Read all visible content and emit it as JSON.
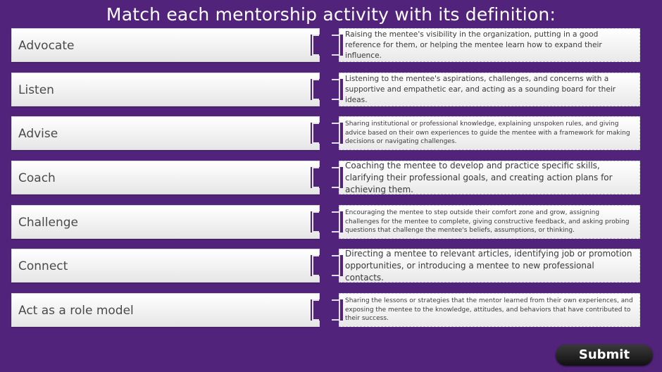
{
  "title": "Match each mentorship activity with its definition:",
  "pairs": [
    {
      "term": "Advocate",
      "definition": "Raising the mentee's visibility in the organization, putting in a good reference for them, or helping the mentee learn how to expand their influence."
    },
    {
      "term": "Listen",
      "definition": "Listening to the mentee's aspirations, challenges, and concerns with a supportive and empathetic ear, and acting as a sounding board for their ideas."
    },
    {
      "term": "Advise",
      "definition": "Sharing institutional or professional knowledge, explaining unspoken rules, and giving advice based on their own experiences to guide the mentee with a framework for making decisions or navigating challenges."
    },
    {
      "term": "Coach",
      "definition": "Coaching the mentee to develop and practice specific skills, clarifying their professional goals, and creating action plans for achieving them."
    },
    {
      "term": "Challenge",
      "definition": "Encouraging the mentee to step outside their comfort zone and grow, assigning challenges for the mentee to complete, giving constructive feedback, and asking probing questions that challenge the mentee's beliefs, assumptions, or thinking."
    },
    {
      "term": "Connect",
      "definition": "Directing a mentee to relevant articles, identifying job or promotion opportunities, or introducing a mentee to new professional contacts."
    },
    {
      "term": "Act as a role model",
      "definition": "Sharing the lessons or strategies that the mentor learned from their own experiences, and exposing the mentee to the knowledge, attitudes, and behaviors that have contributed to their success."
    }
  ],
  "submit_label": "Submit",
  "colors": {
    "background": "#51237a",
    "card": "#f2f2f2",
    "button": "#1e1e1e"
  }
}
